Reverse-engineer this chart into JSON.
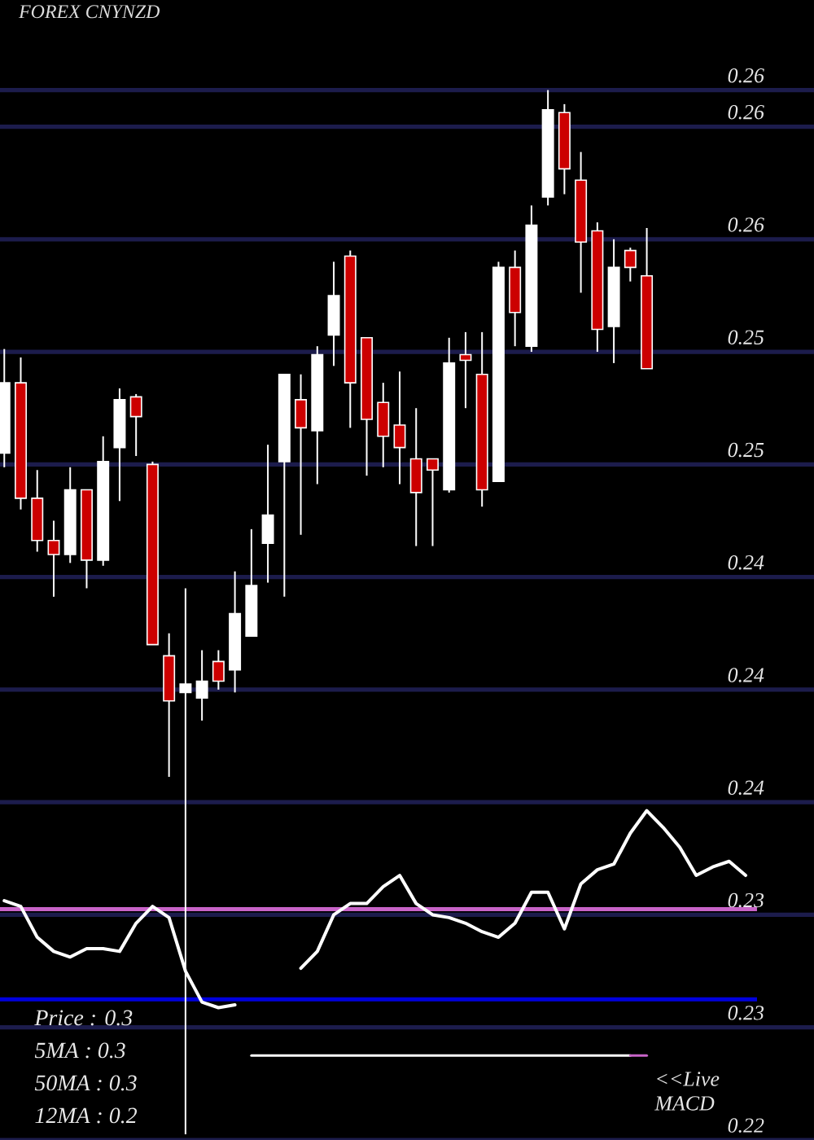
{
  "chart_data": {
    "type": "candlestick",
    "title": "FOREX CNYNZD",
    "categories": [
      null,
      null,
      null,
      null,
      null,
      null,
      null,
      null,
      null,
      null,
      null,
      null,
      null,
      null,
      null,
      null,
      null,
      null,
      null,
      null,
      null,
      null,
      null,
      null,
      null,
      null,
      null,
      null,
      null,
      null,
      null,
      null,
      null,
      null,
      null,
      null,
      null,
      null,
      null,
      null,
      null,
      null,
      null,
      null,
      null,
      null
    ],
    "ohlc": [
      [
        0.2484,
        0.2521,
        0.2479,
        0.2509
      ],
      [
        0.2509,
        0.2518,
        0.2464,
        0.2468
      ],
      [
        0.2468,
        0.2478,
        0.2449,
        0.2453
      ],
      [
        0.2453,
        0.246,
        0.2433,
        0.2448
      ],
      [
        0.2448,
        0.2479,
        0.2445,
        0.2471
      ],
      [
        0.2471,
        0.2471,
        0.2436,
        0.2446
      ],
      [
        0.2446,
        0.249,
        0.2444,
        0.2481
      ],
      [
        0.2486,
        0.2507,
        0.2467,
        0.2503
      ],
      [
        0.2504,
        0.2505,
        0.2483,
        0.2497
      ],
      [
        0.248,
        0.2481,
        0.2416,
        0.2416
      ],
      [
        0.2412,
        0.242,
        0.2369,
        0.2396
      ],
      [
        0.2399,
        0.2436,
        0.2242,
        0.2402
      ],
      [
        0.2397,
        0.2414,
        0.2389,
        0.2403
      ],
      [
        0.241,
        0.2414,
        0.24,
        0.2403
      ],
      [
        0.2407,
        0.2442,
        0.2399,
        0.2427
      ],
      [
        0.2419,
        0.2457,
        0.2419,
        0.2437
      ],
      [
        0.2452,
        0.2487,
        0.2438,
        0.2462
      ],
      [
        0.2481,
        0.2512,
        0.2433,
        0.2512
      ],
      [
        0.2503,
        0.2512,
        0.2455,
        0.2493
      ],
      [
        0.2492,
        0.2522,
        0.2473,
        0.2519
      ],
      [
        0.2526,
        0.2552,
        0.2515,
        0.254
      ],
      [
        0.2554,
        0.2556,
        0.2493,
        0.2509
      ],
      [
        0.2525,
        0.2525,
        0.2476,
        0.2496
      ],
      [
        0.2502,
        0.2509,
        0.2479,
        0.249
      ],
      [
        0.2494,
        0.2513,
        0.2473,
        0.2486
      ],
      [
        0.2482,
        0.25,
        0.2451,
        0.247
      ],
      [
        0.2482,
        0.2482,
        0.2451,
        0.2478
      ],
      [
        0.2471,
        0.2525,
        0.247,
        0.2516
      ],
      [
        0.2519,
        0.2527,
        0.25,
        0.2517
      ],
      [
        0.2512,
        0.2527,
        0.2465,
        0.2471
      ],
      [
        0.2474,
        0.2552,
        0.2474,
        0.255
      ],
      [
        0.255,
        0.2556,
        0.2522,
        0.2534
      ],
      [
        0.2522,
        0.2572,
        0.252,
        0.2565
      ],
      [
        0.2575,
        0.2613,
        0.2572,
        0.2606
      ],
      [
        0.2605,
        0.2608,
        0.2576,
        0.2585
      ],
      [
        0.2581,
        0.2591,
        0.2541,
        0.2559
      ],
      [
        0.2563,
        0.2566,
        0.252,
        0.2528
      ],
      [
        0.2529,
        0.256,
        0.2516,
        0.255
      ],
      [
        0.2556,
        0.2557,
        0.2545,
        0.255
      ],
      [
        0.2547,
        0.2564,
        0.2514,
        0.2514
      ],
      null,
      null,
      null,
      null,
      null,
      null
    ],
    "colors": [
      "#ffffff",
      "#cc0000",
      "#cc0000",
      "#cc0000",
      "#ffffff",
      "#cc0000",
      "#ffffff",
      "#ffffff",
      "#cc0000",
      "#cc0000",
      "#cc0000",
      "#ffffff",
      "#ffffff",
      "#cc0000",
      "#ffffff",
      "#ffffff",
      "#ffffff",
      "#ffffff",
      "#cc0000",
      "#ffffff",
      "#ffffff",
      "#cc0000",
      "#cc0000",
      "#cc0000",
      "#cc0000",
      "#cc0000",
      "#cc0000",
      "#ffffff",
      "#cc0000",
      "#cc0000",
      "#ffffff",
      "#cc0000",
      "#ffffff",
      "#ffffff",
      "#cc0000",
      "#cc0000",
      "#cc0000",
      "#ffffff",
      "#cc0000",
      "#cc0000",
      null,
      null,
      null,
      null,
      null,
      null
    ],
    "series": [
      {
        "type": "line",
        "color": "#ffffff",
        "values": [
          0.2325,
          0.2323,
          0.2312,
          0.2307,
          0.2305,
          0.2308,
          0.2308,
          0.2307,
          0.2317,
          0.2323,
          0.2319,
          0.23,
          0.2289,
          0.2287,
          0.2288,
          null,
          null,
          null,
          0.2301,
          0.2307,
          0.232,
          0.2324,
          0.2324,
          0.233,
          0.2334,
          0.2324,
          0.232,
          0.2319,
          0.2317,
          0.2314,
          0.2312,
          0.2317,
          0.2328,
          0.2328,
          0.2315,
          0.2331,
          0.2336,
          0.2338,
          0.2349,
          0.2357,
          0.2351,
          0.2344,
          0.2334,
          0.2337,
          0.2339,
          0.2334
        ]
      },
      {
        "type": "line",
        "color": "#ffffff",
        "values": [
          null,
          null,
          null,
          null,
          null,
          null,
          null,
          null,
          null,
          null,
          null,
          null,
          null,
          null,
          null,
          0.227,
          0.227,
          0.227,
          0.227,
          0.227,
          0.227,
          0.227,
          0.227,
          0.227,
          0.227,
          0.227,
          0.227,
          0.227,
          0.227,
          0.227,
          0.227,
          0.227,
          0.227,
          0.227,
          0.227,
          0.227,
          0.227,
          0.227,
          0.227,
          null,
          null,
          null,
          null,
          null,
          null,
          null
        ]
      },
      {
        "type": "line",
        "color": "#c864c8",
        "values": [
          null,
          null,
          null,
          null,
          null,
          null,
          null,
          null,
          null,
          null,
          null,
          null,
          null,
          null,
          null,
          null,
          null,
          null,
          null,
          null,
          null,
          null,
          null,
          null,
          null,
          null,
          null,
          null,
          null,
          null,
          null,
          null,
          null,
          null,
          null,
          null,
          null,
          null,
          0.227,
          0.227,
          null,
          null,
          null,
          null,
          null,
          null
        ]
      }
    ],
    "ylim": [
      0.224,
      0.2645
    ],
    "yticks": [
      {
        "value": 0.224,
        "label": "0.22"
      },
      {
        "value": 0.228,
        "label": "0.23"
      },
      {
        "value": 0.232,
        "label": "0.23"
      },
      {
        "value": 0.236,
        "label": "0.24"
      },
      0.24,
      {
        "value": 0.244,
        "label": "0.24"
      },
      {
        "value": 0.248,
        "label": "0.25"
      },
      {
        "value": 0.252,
        "label": "0.25"
      },
      {
        "value": 0.256,
        "label": "0.26"
      },
      0.26,
      {
        "value": 0.2613,
        "label": "0.26"
      }
    ],
    "tick_labels": "y",
    "grid": "y",
    "ref_lines": [
      {
        "axis": "y",
        "value": 0.2322,
        "color": "#c864c8"
      },
      {
        "axis": "y",
        "value": 0.229,
        "color": "#0000dd"
      }
    ],
    "annotations": [
      "Price : 0.3",
      "5MA : 0.3",
      "50MA : 0.3",
      "12MA : 0.2",
      "<<Live MACD"
    ]
  }
}
